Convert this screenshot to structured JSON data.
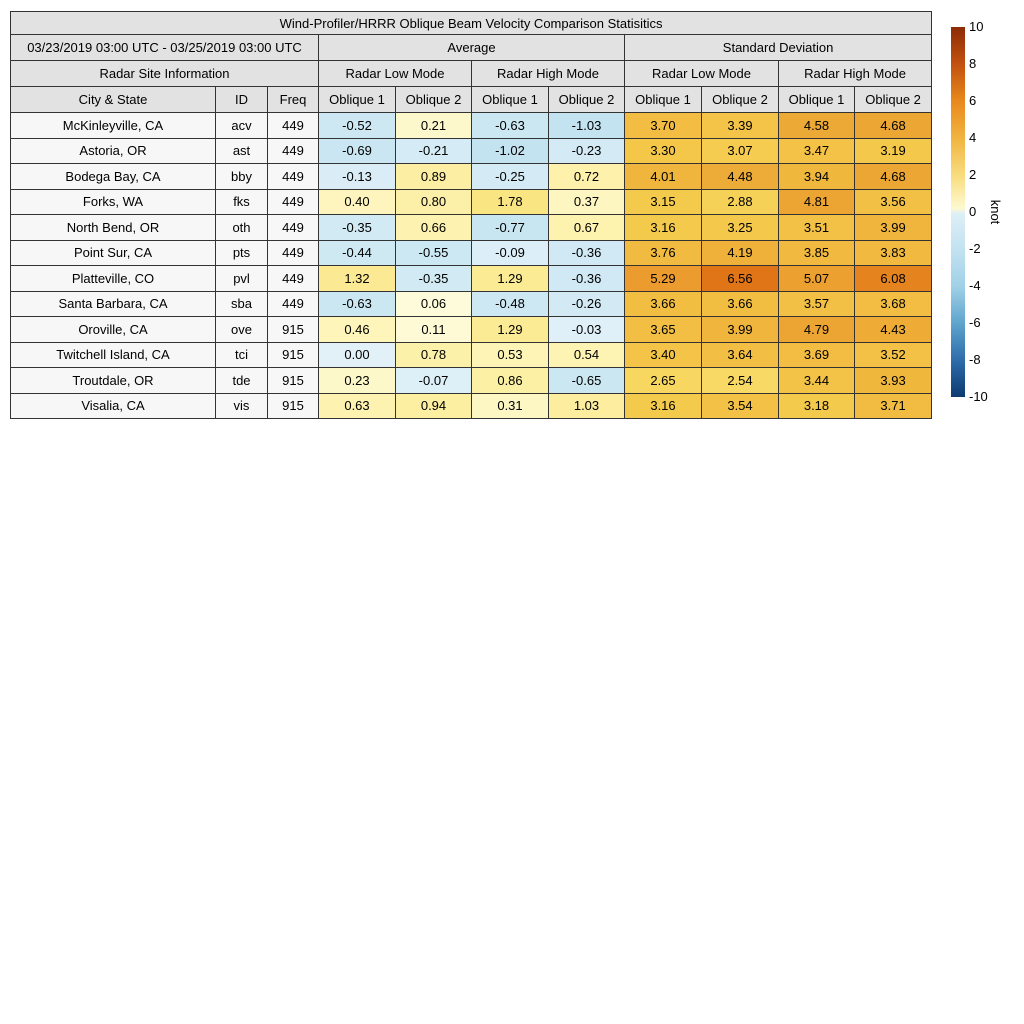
{
  "title": "Wind-Profiler/HRRR Oblique Beam Velocity Comparison Statisitics",
  "table": {
    "date_range": "03/23/2019 03:00 UTC - 03/25/2019 03:00 UTC",
    "group_average": "Average",
    "group_std": "Standard Deviation",
    "site_info": "Radar Site Information",
    "mode_headers": [
      "Radar Low Mode",
      "Radar High Mode",
      "Radar Low Mode",
      "Radar High Mode"
    ],
    "col_city": "City & State",
    "col_id": "ID",
    "col_freq": "Freq",
    "oblique_headers": [
      "Oblique 1",
      "Oblique 2",
      "Oblique 1",
      "Oblique 2",
      "Oblique 1",
      "Oblique 2",
      "Oblique 1",
      "Oblique 2"
    ]
  },
  "chart_data": {
    "type": "heatmap",
    "title": "Wind-Profiler/HRRR Oblique Beam Velocity Comparison Statisitics",
    "value_columns": [
      "Average Low Oblique 1",
      "Average Low Oblique 2",
      "Average High Oblique 1",
      "Average High Oblique 2",
      "StdDev Low Oblique 1",
      "StdDev Low Oblique 2",
      "StdDev High Oblique 1",
      "StdDev High Oblique 2"
    ],
    "color_range": [
      -10,
      10
    ],
    "unit": "knot",
    "rows": [
      {
        "city": "McKinleyville, CA",
        "id": "acv",
        "freq": "449",
        "values": [
          "-0.52",
          "0.21",
          "-0.63",
          "-1.03",
          "3.70",
          "3.39",
          "4.58",
          "4.68"
        ]
      },
      {
        "city": "Astoria, OR",
        "id": "ast",
        "freq": "449",
        "values": [
          "-0.69",
          "-0.21",
          "-1.02",
          "-0.23",
          "3.30",
          "3.07",
          "3.47",
          "3.19"
        ]
      },
      {
        "city": "Bodega Bay, CA",
        "id": "bby",
        "freq": "449",
        "values": [
          "-0.13",
          "0.89",
          "-0.25",
          "0.72",
          "4.01",
          "4.48",
          "3.94",
          "4.68"
        ]
      },
      {
        "city": "Forks, WA",
        "id": "fks",
        "freq": "449",
        "values": [
          "0.40",
          "0.80",
          "1.78",
          "0.37",
          "3.15",
          "2.88",
          "4.81",
          "3.56"
        ]
      },
      {
        "city": "North Bend, OR",
        "id": "oth",
        "freq": "449",
        "values": [
          "-0.35",
          "0.66",
          "-0.77",
          "0.67",
          "3.16",
          "3.25",
          "3.51",
          "3.99"
        ]
      },
      {
        "city": "Point Sur, CA",
        "id": "pts",
        "freq": "449",
        "values": [
          "-0.44",
          "-0.55",
          "-0.09",
          "-0.36",
          "3.76",
          "4.19",
          "3.85",
          "3.83"
        ]
      },
      {
        "city": "Platteville, CO",
        "id": "pvl",
        "freq": "449",
        "values": [
          "1.32",
          "-0.35",
          "1.29",
          "-0.36",
          "5.29",
          "6.56",
          "5.07",
          "6.08"
        ]
      },
      {
        "city": "Santa Barbara, CA",
        "id": "sba",
        "freq": "449",
        "values": [
          "-0.63",
          "0.06",
          "-0.48",
          "-0.26",
          "3.66",
          "3.66",
          "3.57",
          "3.68"
        ]
      },
      {
        "city": "Oroville, CA",
        "id": "ove",
        "freq": "915",
        "values": [
          "0.46",
          "0.11",
          "1.29",
          "-0.03",
          "3.65",
          "3.99",
          "4.79",
          "4.43"
        ]
      },
      {
        "city": "Twitchell Island, CA",
        "id": "tci",
        "freq": "915",
        "values": [
          "0.00",
          "0.78",
          "0.53",
          "0.54",
          "3.40",
          "3.64",
          "3.69",
          "3.52"
        ]
      },
      {
        "city": "Troutdale, OR",
        "id": "tde",
        "freq": "915",
        "values": [
          "0.23",
          "-0.07",
          "0.86",
          "-0.65",
          "2.65",
          "2.54",
          "3.44",
          "3.93"
        ]
      },
      {
        "city": "Visalia, CA",
        "id": "vis",
        "freq": "915",
        "values": [
          "0.63",
          "0.94",
          "0.31",
          "1.03",
          "3.16",
          "3.54",
          "3.18",
          "3.71"
        ]
      }
    ]
  },
  "colorbar": {
    "unit": "knot",
    "ticks": [
      "10",
      "8",
      "6",
      "4",
      "2",
      "0",
      "-2",
      "-4",
      "-6",
      "-8",
      "-10"
    ],
    "gradient": [
      {
        "p": 0,
        "c": "#8c2b06"
      },
      {
        "p": 10,
        "c": "#c25010"
      },
      {
        "p": 20,
        "c": "#e8891c"
      },
      {
        "p": 30,
        "c": "#f1b440"
      },
      {
        "p": 40,
        "c": "#f8dc7d"
      },
      {
        "p": 49,
        "c": "#fdf9d0"
      },
      {
        "p": 50.5,
        "c": "#ddeff7"
      },
      {
        "p": 60,
        "c": "#c3e2f0"
      },
      {
        "p": 70,
        "c": "#a1d1e7"
      },
      {
        "p": 80,
        "c": "#5fa5cd"
      },
      {
        "p": 90,
        "c": "#2e6dab"
      },
      {
        "p": 100,
        "c": "#0d3a70"
      }
    ]
  },
  "colormap": {
    "neg": [
      {
        "v": -10,
        "c": "#0d3a70"
      },
      {
        "v": -8,
        "c": "#2e6dab"
      },
      {
        "v": -6,
        "c": "#5fa5cd"
      },
      {
        "v": -4,
        "c": "#a1d1e7"
      },
      {
        "v": -2,
        "c": "#bfe0ef"
      },
      {
        "v": -1,
        "c": "#c4e3f1"
      },
      {
        "v": -0.5,
        "c": "#cde8f3"
      },
      {
        "v": -0.2,
        "c": "#d5ebf5"
      },
      {
        "v": 0,
        "c": "#e2f1f8"
      }
    ],
    "pos": [
      {
        "v": 0,
        "c": "#fefce1"
      },
      {
        "v": 0.2,
        "c": "#fdf8cc"
      },
      {
        "v": 0.5,
        "c": "#fdf4b6"
      },
      {
        "v": 1,
        "c": "#fcee9f"
      },
      {
        "v": 1.5,
        "c": "#fae88c"
      },
      {
        "v": 2,
        "c": "#f9e27b"
      },
      {
        "v": 2.6,
        "c": "#f8d862"
      },
      {
        "v": 3.2,
        "c": "#f4c94b"
      },
      {
        "v": 4,
        "c": "#f0b53c"
      },
      {
        "v": 4.7,
        "c": "#eca634"
      },
      {
        "v": 5.3,
        "c": "#ec9c2e"
      },
      {
        "v": 6.1,
        "c": "#e5821e"
      },
      {
        "v": 6.6,
        "c": "#e07418"
      },
      {
        "v": 10,
        "c": "#8c2b06"
      }
    ]
  }
}
